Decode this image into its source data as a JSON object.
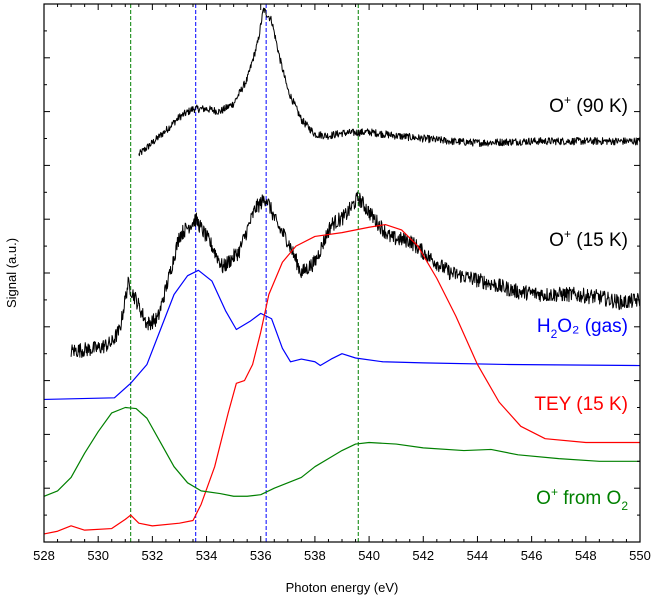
{
  "chart_data": {
    "type": "line",
    "title": "",
    "xlabel": "Photon energy (eV)",
    "ylabel": "Signal (a.u.)",
    "xlim": [
      528,
      550
    ],
    "ylim": [
      0,
      10
    ],
    "y_ticks_labeled": false,
    "x_ticks": [
      528,
      530,
      532,
      534,
      536,
      538,
      540,
      542,
      544,
      546,
      548,
      550
    ],
    "grid": false,
    "legend": "none",
    "reference_lines": [
      {
        "x": 531.2,
        "color": "#008000",
        "style": "dashed"
      },
      {
        "x": 533.6,
        "color": "#0000ff",
        "style": "dashed"
      },
      {
        "x": 536.2,
        "color": "#0000ff",
        "style": "dashed"
      },
      {
        "x": 539.6,
        "color": "#008000",
        "style": "dashed"
      }
    ],
    "series": [
      {
        "label_prefix": "O",
        "label_sup": "+",
        "label_rest": " (90 K)",
        "label_sub": "",
        "label_tail": "",
        "color": "#000000",
        "noisy": true,
        "noise_amp": 0.07,
        "points": [
          [
            531.5,
            7.2
          ],
          [
            532.0,
            7.42
          ],
          [
            532.5,
            7.65
          ],
          [
            533.0,
            7.9
          ],
          [
            533.5,
            8.05
          ],
          [
            534.0,
            8.05
          ],
          [
            534.5,
            8.0
          ],
          [
            535.0,
            8.15
          ],
          [
            535.5,
            8.6
          ],
          [
            535.9,
            9.3
          ],
          [
            536.1,
            9.9
          ],
          [
            536.4,
            9.7
          ],
          [
            536.7,
            9.0
          ],
          [
            537.0,
            8.4
          ],
          [
            537.5,
            7.85
          ],
          [
            538.0,
            7.58
          ],
          [
            538.5,
            7.55
          ],
          [
            539.0,
            7.6
          ],
          [
            540.0,
            7.62
          ],
          [
            541.0,
            7.55
          ],
          [
            542.0,
            7.5
          ],
          [
            543.0,
            7.45
          ],
          [
            544.0,
            7.42
          ],
          [
            546.0,
            7.45
          ],
          [
            548.0,
            7.45
          ],
          [
            550.0,
            7.45
          ]
        ]
      },
      {
        "label_prefix": "O",
        "label_sup": "+",
        "label_rest": " (15 K)",
        "label_sub": "",
        "label_tail": "",
        "color": "#000000",
        "noisy": true,
        "noise_amp": 0.14,
        "points": [
          [
            529.0,
            3.55
          ],
          [
            530.0,
            3.6
          ],
          [
            530.5,
            3.7
          ],
          [
            530.8,
            3.95
          ],
          [
            531.1,
            4.8
          ],
          [
            531.4,
            4.5
          ],
          [
            531.8,
            4.05
          ],
          [
            532.2,
            4.15
          ],
          [
            532.6,
            4.9
          ],
          [
            533.0,
            5.7
          ],
          [
            533.6,
            6.0
          ],
          [
            534.2,
            5.5
          ],
          [
            534.6,
            5.1
          ],
          [
            535.2,
            5.4
          ],
          [
            535.8,
            6.2
          ],
          [
            536.2,
            6.4
          ],
          [
            536.6,
            5.9
          ],
          [
            537.0,
            5.6
          ],
          [
            537.5,
            5.0
          ],
          [
            538.0,
            5.2
          ],
          [
            538.6,
            5.9
          ],
          [
            539.1,
            6.05
          ],
          [
            539.6,
            6.4
          ],
          [
            540.2,
            6.0
          ],
          [
            540.8,
            5.65
          ],
          [
            541.5,
            5.6
          ],
          [
            542.2,
            5.3
          ],
          [
            543.0,
            5.0
          ],
          [
            543.8,
            4.9
          ],
          [
            544.5,
            4.8
          ],
          [
            545.5,
            4.65
          ],
          [
            546.5,
            4.6
          ],
          [
            547.5,
            4.6
          ],
          [
            548.5,
            4.55
          ],
          [
            549.3,
            4.45
          ],
          [
            550.0,
            4.5
          ]
        ]
      },
      {
        "label_prefix": "H",
        "label_sup": "",
        "label_rest": "",
        "label_sub": "2",
        "label_tail": "O₂ (gas)",
        "color": "#0000ff",
        "noisy": false,
        "noise_amp": 0,
        "points": [
          [
            528.0,
            2.65
          ],
          [
            530.6,
            2.68
          ],
          [
            531.2,
            2.95
          ],
          [
            531.8,
            3.3
          ],
          [
            532.3,
            3.95
          ],
          [
            532.8,
            4.6
          ],
          [
            533.3,
            4.95
          ],
          [
            533.7,
            5.05
          ],
          [
            534.2,
            4.85
          ],
          [
            534.7,
            4.3
          ],
          [
            535.1,
            3.95
          ],
          [
            535.6,
            4.1
          ],
          [
            536.0,
            4.25
          ],
          [
            536.4,
            4.15
          ],
          [
            536.8,
            3.6
          ],
          [
            537.1,
            3.35
          ],
          [
            537.5,
            3.4
          ],
          [
            538.0,
            3.35
          ],
          [
            538.2,
            3.28
          ],
          [
            538.6,
            3.4
          ],
          [
            539.0,
            3.5
          ],
          [
            539.5,
            3.42
          ],
          [
            540.5,
            3.35
          ],
          [
            542.0,
            3.33
          ],
          [
            545.0,
            3.3
          ],
          [
            550.0,
            3.28
          ]
        ]
      },
      {
        "label_prefix": "TEY (15 K)",
        "label_sup": "",
        "label_rest": "",
        "label_sub": "",
        "label_tail": "",
        "color": "#ff0000",
        "noisy": false,
        "noise_amp": 0,
        "points": [
          [
            528.0,
            0.15
          ],
          [
            528.5,
            0.2
          ],
          [
            529.0,
            0.3
          ],
          [
            529.5,
            0.22
          ],
          [
            530.5,
            0.25
          ],
          [
            531.0,
            0.42
          ],
          [
            531.2,
            0.5
          ],
          [
            531.5,
            0.35
          ],
          [
            532.0,
            0.3
          ],
          [
            533.0,
            0.35
          ],
          [
            533.5,
            0.4
          ],
          [
            533.8,
            0.7
          ],
          [
            534.3,
            1.4
          ],
          [
            534.8,
            2.4
          ],
          [
            535.1,
            2.95
          ],
          [
            535.4,
            3.0
          ],
          [
            535.7,
            3.3
          ],
          [
            536.0,
            3.9
          ],
          [
            536.3,
            4.6
          ],
          [
            536.8,
            5.2
          ],
          [
            537.3,
            5.5
          ],
          [
            538.0,
            5.68
          ],
          [
            539.0,
            5.75
          ],
          [
            540.0,
            5.85
          ],
          [
            540.6,
            5.9
          ],
          [
            541.2,
            5.8
          ],
          [
            541.8,
            5.5
          ],
          [
            542.5,
            4.9
          ],
          [
            543.2,
            4.2
          ],
          [
            544.0,
            3.3
          ],
          [
            544.8,
            2.6
          ],
          [
            545.6,
            2.15
          ],
          [
            546.5,
            1.92
          ],
          [
            548.0,
            1.85
          ],
          [
            550.0,
            1.85
          ]
        ]
      },
      {
        "label_prefix": "O",
        "label_sup": "+",
        "label_rest": " from O",
        "label_sub": "2",
        "label_tail": "",
        "color": "#008000",
        "noisy": false,
        "noise_amp": 0,
        "points": [
          [
            528.0,
            0.85
          ],
          [
            528.5,
            0.95
          ],
          [
            529.0,
            1.2
          ],
          [
            529.5,
            1.65
          ],
          [
            530.0,
            2.05
          ],
          [
            530.5,
            2.4
          ],
          [
            531.0,
            2.5
          ],
          [
            531.4,
            2.48
          ],
          [
            531.8,
            2.3
          ],
          [
            532.3,
            1.85
          ],
          [
            532.8,
            1.4
          ],
          [
            533.3,
            1.1
          ],
          [
            533.8,
            0.95
          ],
          [
            534.5,
            0.9
          ],
          [
            535.0,
            0.85
          ],
          [
            535.5,
            0.85
          ],
          [
            536.0,
            0.88
          ],
          [
            536.5,
            1.0
          ],
          [
            537.0,
            1.1
          ],
          [
            537.5,
            1.2
          ],
          [
            538.0,
            1.4
          ],
          [
            538.5,
            1.55
          ],
          [
            539.0,
            1.7
          ],
          [
            539.5,
            1.82
          ],
          [
            540.0,
            1.85
          ],
          [
            541.0,
            1.82
          ],
          [
            542.0,
            1.75
          ],
          [
            543.5,
            1.7
          ],
          [
            544.5,
            1.72
          ],
          [
            545.5,
            1.62
          ],
          [
            547.0,
            1.55
          ],
          [
            548.5,
            1.5
          ],
          [
            550.0,
            1.5
          ]
        ]
      }
    ]
  }
}
